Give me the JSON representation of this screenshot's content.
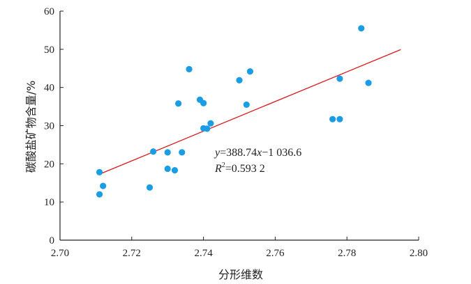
{
  "chart_data": {
    "type": "scatter",
    "xlabel": "分形维数",
    "ylabel": "碳酸盐矿物含量/%",
    "xlim": [
      2.7,
      2.8
    ],
    "ylim": [
      0,
      60
    ],
    "x_ticks": [
      "2.70",
      "2.72",
      "2.74",
      "2.76",
      "2.78",
      "2.80"
    ],
    "y_ticks": [
      "0",
      "10",
      "20",
      "30",
      "40",
      "50",
      "60"
    ],
    "grid": false,
    "colors": {
      "points": "#1a9de2",
      "fit_line": "#d7191c",
      "axis": "#222222"
    },
    "points": [
      {
        "x": 2.711,
        "y": 17.8
      },
      {
        "x": 2.711,
        "y": 12.0
      },
      {
        "x": 2.712,
        "y": 14.2
      },
      {
        "x": 2.725,
        "y": 13.8
      },
      {
        "x": 2.726,
        "y": 23.2
      },
      {
        "x": 2.73,
        "y": 23.0
      },
      {
        "x": 2.73,
        "y": 18.7
      },
      {
        "x": 2.732,
        "y": 18.3
      },
      {
        "x": 2.733,
        "y": 35.8
      },
      {
        "x": 2.734,
        "y": 23.0
      },
      {
        "x": 2.736,
        "y": 44.8
      },
      {
        "x": 2.739,
        "y": 36.8
      },
      {
        "x": 2.74,
        "y": 35.9
      },
      {
        "x": 2.74,
        "y": 29.3
      },
      {
        "x": 2.741,
        "y": 29.2
      },
      {
        "x": 2.742,
        "y": 30.6
      },
      {
        "x": 2.75,
        "y": 41.9
      },
      {
        "x": 2.752,
        "y": 35.5
      },
      {
        "x": 2.753,
        "y": 44.2
      },
      {
        "x": 2.776,
        "y": 31.7
      },
      {
        "x": 2.778,
        "y": 31.7
      },
      {
        "x": 2.778,
        "y": 42.3
      },
      {
        "x": 2.784,
        "y": 55.5
      },
      {
        "x": 2.786,
        "y": 41.2
      }
    ],
    "fit": {
      "slope": 388.74,
      "intercept": -1036.6,
      "x_range": [
        2.711,
        2.795
      ],
      "equation": {
        "y_var": "y",
        "eq_sign": "=388.74",
        "x_var": "x",
        "rest": "−1 036.6"
      },
      "r2": {
        "r": "R",
        "sup": "2",
        "value": "=0.593 2"
      }
    }
  }
}
